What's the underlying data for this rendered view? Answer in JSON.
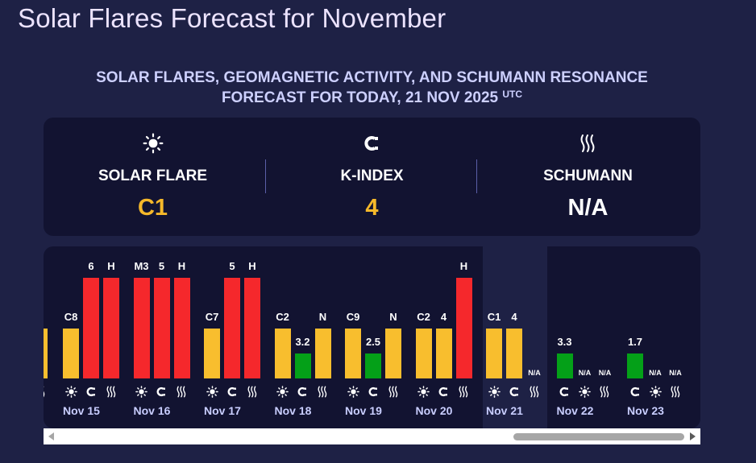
{
  "page": {
    "title": "Solar Flares Forecast for November"
  },
  "header": {
    "line1": "SOLAR FLARES, GEOMAGNETIC ACTIVITY, AND SCHUMANN RESONANCE",
    "line2": "FORECAST FOR TODAY, 21 NOV 2025",
    "tz": "UTC"
  },
  "summary": {
    "solar_flare": {
      "label": "SOLAR FLARE",
      "value": "C1",
      "icon": "sun-icon",
      "color": "#f5b82a"
    },
    "k_index": {
      "label": "K-INDEX",
      "value": "4",
      "icon": "magnet-icon",
      "color": "#f5b82a"
    },
    "schumann": {
      "label": "SCHUMANN",
      "value": "N/A",
      "icon": "waves-icon",
      "color": "#ffffff"
    }
  },
  "colors": {
    "low": "#f8be2e",
    "high": "#f5282c",
    "ok": "#04a018",
    "background": "#1e2145",
    "panel": "#121331"
  },
  "chart_data": {
    "type": "bar",
    "levels": {
      "H": 3,
      "letter": 2,
      "value": 1
    },
    "partial_day": {
      "visible_bar": {
        "label": "",
        "level": 2,
        "color": "#f8be2e"
      },
      "icon": "waves-icon"
    },
    "days": [
      {
        "label": "Nov 15",
        "order": [
          "sun",
          "magnet",
          "waves"
        ],
        "bars": [
          {
            "label": "C8",
            "level": 2,
            "color": "#f8be2e"
          },
          {
            "label": "6",
            "level": 3,
            "color": "#f5282c"
          },
          {
            "label": "H",
            "level": 3,
            "color": "#f5282c"
          }
        ]
      },
      {
        "label": "Nov 16",
        "order": [
          "sun",
          "magnet",
          "waves"
        ],
        "bars": [
          {
            "label": "M3",
            "level": 3,
            "color": "#f5282c"
          },
          {
            "label": "5",
            "level": 3,
            "color": "#f5282c"
          },
          {
            "label": "H",
            "level": 3,
            "color": "#f5282c"
          }
        ]
      },
      {
        "label": "Nov 17",
        "order": [
          "sun",
          "magnet",
          "waves"
        ],
        "bars": [
          {
            "label": "C7",
            "level": 2,
            "color": "#f8be2e"
          },
          {
            "label": "5",
            "level": 3,
            "color": "#f5282c"
          },
          {
            "label": "H",
            "level": 3,
            "color": "#f5282c"
          }
        ]
      },
      {
        "label": "Nov 18",
        "order": [
          "sun",
          "magnet",
          "waves"
        ],
        "bars": [
          {
            "label": "C2",
            "level": 2,
            "color": "#f8be2e"
          },
          {
            "label": "3.2",
            "level": 1,
            "color": "#04a018"
          },
          {
            "label": "N",
            "level": 2,
            "color": "#f8be2e"
          }
        ]
      },
      {
        "label": "Nov 19",
        "order": [
          "sun",
          "magnet",
          "waves"
        ],
        "bars": [
          {
            "label": "C9",
            "level": 2,
            "color": "#f8be2e"
          },
          {
            "label": "2.5",
            "level": 1,
            "color": "#04a018"
          },
          {
            "label": "N",
            "level": 2,
            "color": "#f8be2e"
          }
        ]
      },
      {
        "label": "Nov 20",
        "order": [
          "sun",
          "magnet",
          "waves"
        ],
        "bars": [
          {
            "label": "C2",
            "level": 2,
            "color": "#f8be2e"
          },
          {
            "label": "4",
            "level": 2,
            "color": "#f8be2e"
          },
          {
            "label": "H",
            "level": 3,
            "color": "#f5282c"
          }
        ]
      },
      {
        "label": "Nov 21",
        "today": true,
        "order": [
          "sun",
          "magnet",
          "waves"
        ],
        "bars": [
          {
            "label": "C1",
            "level": 2,
            "color": "#f8be2e"
          },
          {
            "label": "4",
            "level": 2,
            "color": "#f8be2e"
          },
          {
            "label": "N/A",
            "level": 0,
            "color": "#f8be2e"
          }
        ]
      },
      {
        "label": "Nov 22",
        "order": [
          "magnet",
          "sun",
          "waves"
        ],
        "bars": [
          {
            "label": "3.3",
            "level": 1,
            "color": "#04a018"
          },
          {
            "label": "N/A",
            "level": 0,
            "color": "#f8be2e"
          },
          {
            "label": "N/A",
            "level": 0,
            "color": "#f8be2e"
          }
        ]
      },
      {
        "label": "Nov 23",
        "order": [
          "magnet",
          "sun",
          "waves"
        ],
        "bars": [
          {
            "label": "1.7",
            "level": 1,
            "color": "#04a018"
          },
          {
            "label": "N/A",
            "level": 0,
            "color": "#f8be2e"
          },
          {
            "label": "N/A",
            "level": 0,
            "color": "#f8be2e"
          }
        ]
      }
    ]
  }
}
